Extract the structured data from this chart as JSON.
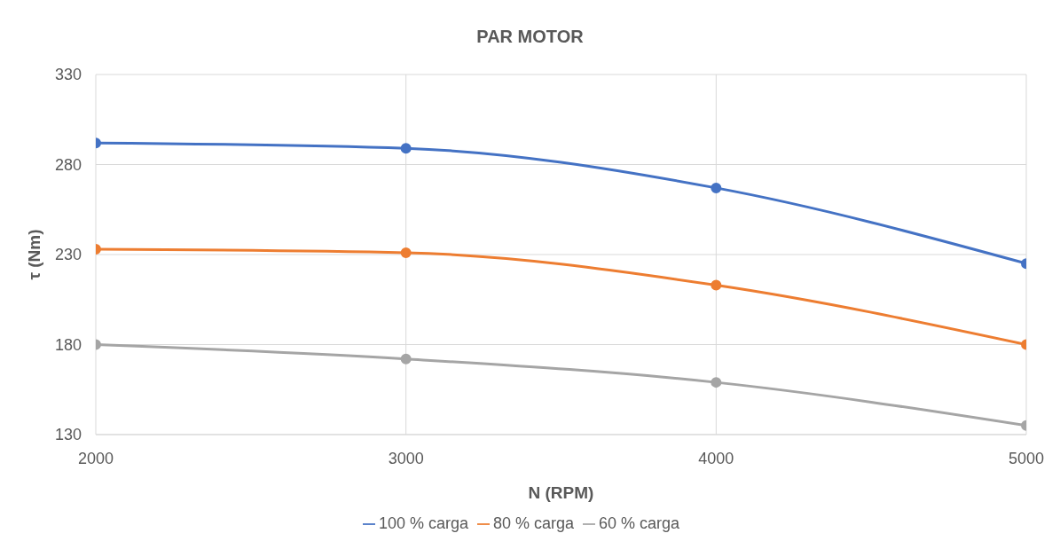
{
  "chart_data": {
    "type": "line",
    "title": "PAR MOTOR",
    "xlabel": "N (RPM)",
    "ylabel": "τ (Nm)",
    "x": [
      2000,
      3000,
      4000,
      5000
    ],
    "series": [
      {
        "name": "100 % carga",
        "color": "#4472c4",
        "values": [
          292,
          289,
          267,
          225
        ]
      },
      {
        "name": "80 % carga",
        "color": "#ed7d31",
        "values": [
          233,
          231,
          213,
          180
        ]
      },
      {
        "name": "60 % carga",
        "color": "#a5a5a5",
        "values": [
          180,
          172,
          159,
          135
        ]
      }
    ],
    "xlim": [
      2000,
      5000
    ],
    "xticks": [
      2000,
      3000,
      4000,
      5000
    ],
    "ylim": [
      130,
      330
    ],
    "yticks": [
      130,
      180,
      230,
      280,
      330
    ],
    "grid": true,
    "legend": "bottom",
    "marker": "circle",
    "line_style": "solid"
  }
}
